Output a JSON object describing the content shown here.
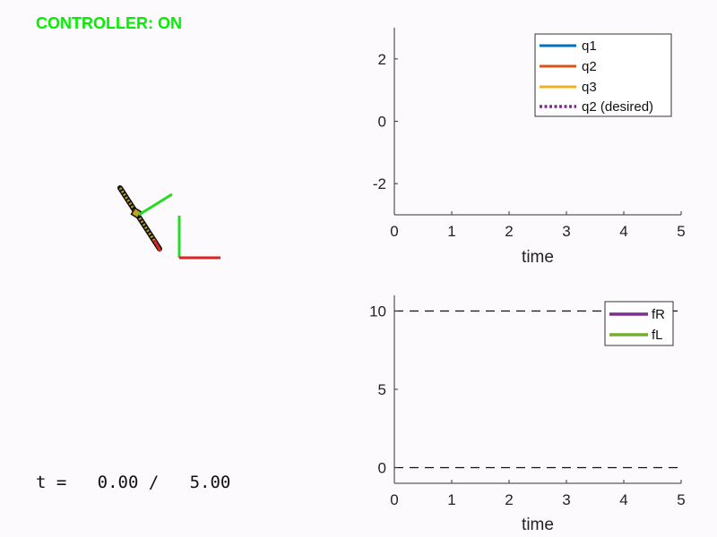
{
  "status": {
    "text": "CONTROLLER: ON",
    "color": "#00f000"
  },
  "time_readout": {
    "text": "t =   0.00 /   5.00",
    "current": 0.0,
    "total": 5.0
  },
  "robot_colors": {
    "body": "#c8a020",
    "link": "#22dd22",
    "foot": "#dd2222",
    "outline": "#111111"
  },
  "chart_data": [
    {
      "type": "line",
      "xlabel": "time",
      "ylabel": "",
      "xlim": [
        0,
        5
      ],
      "ylim": [
        -3,
        3
      ],
      "xticks": [
        "0",
        "1",
        "2",
        "3",
        "4",
        "5"
      ],
      "yticks": [
        "2",
        "0",
        "-2"
      ],
      "ytick_values": [
        2,
        0,
        -2
      ],
      "legend_position": "top-right",
      "series": [
        {
          "name": "q1",
          "color": "#0072bd",
          "style": "solid",
          "x": [],
          "y": []
        },
        {
          "name": "q2",
          "color": "#d95319",
          "style": "solid",
          "x": [],
          "y": []
        },
        {
          "name": "q3",
          "color": "#edb120",
          "style": "solid",
          "x": [],
          "y": []
        },
        {
          "name": "q2 (desired)",
          "color": "#7e2f8e",
          "style": "dotted",
          "x": [],
          "y": []
        }
      ]
    },
    {
      "type": "line",
      "xlabel": "time",
      "ylabel": "",
      "xlim": [
        0,
        5
      ],
      "ylim": [
        -1,
        11
      ],
      "xticks": [
        "0",
        "1",
        "2",
        "3",
        "4",
        "5"
      ],
      "yticks": [
        "10",
        "5",
        "0"
      ],
      "ytick_values": [
        10,
        5,
        0
      ],
      "legend_position": "top-right",
      "reference_lines": [
        {
          "y": 10,
          "style": "dashed",
          "color": "#111111"
        },
        {
          "y": 0,
          "style": "dashed",
          "color": "#111111"
        }
      ],
      "series": [
        {
          "name": "fR",
          "color": "#7e2f8e",
          "style": "solid",
          "x": [],
          "y": []
        },
        {
          "name": "fL",
          "color": "#77ac30",
          "style": "solid",
          "x": [],
          "y": []
        }
      ]
    }
  ]
}
